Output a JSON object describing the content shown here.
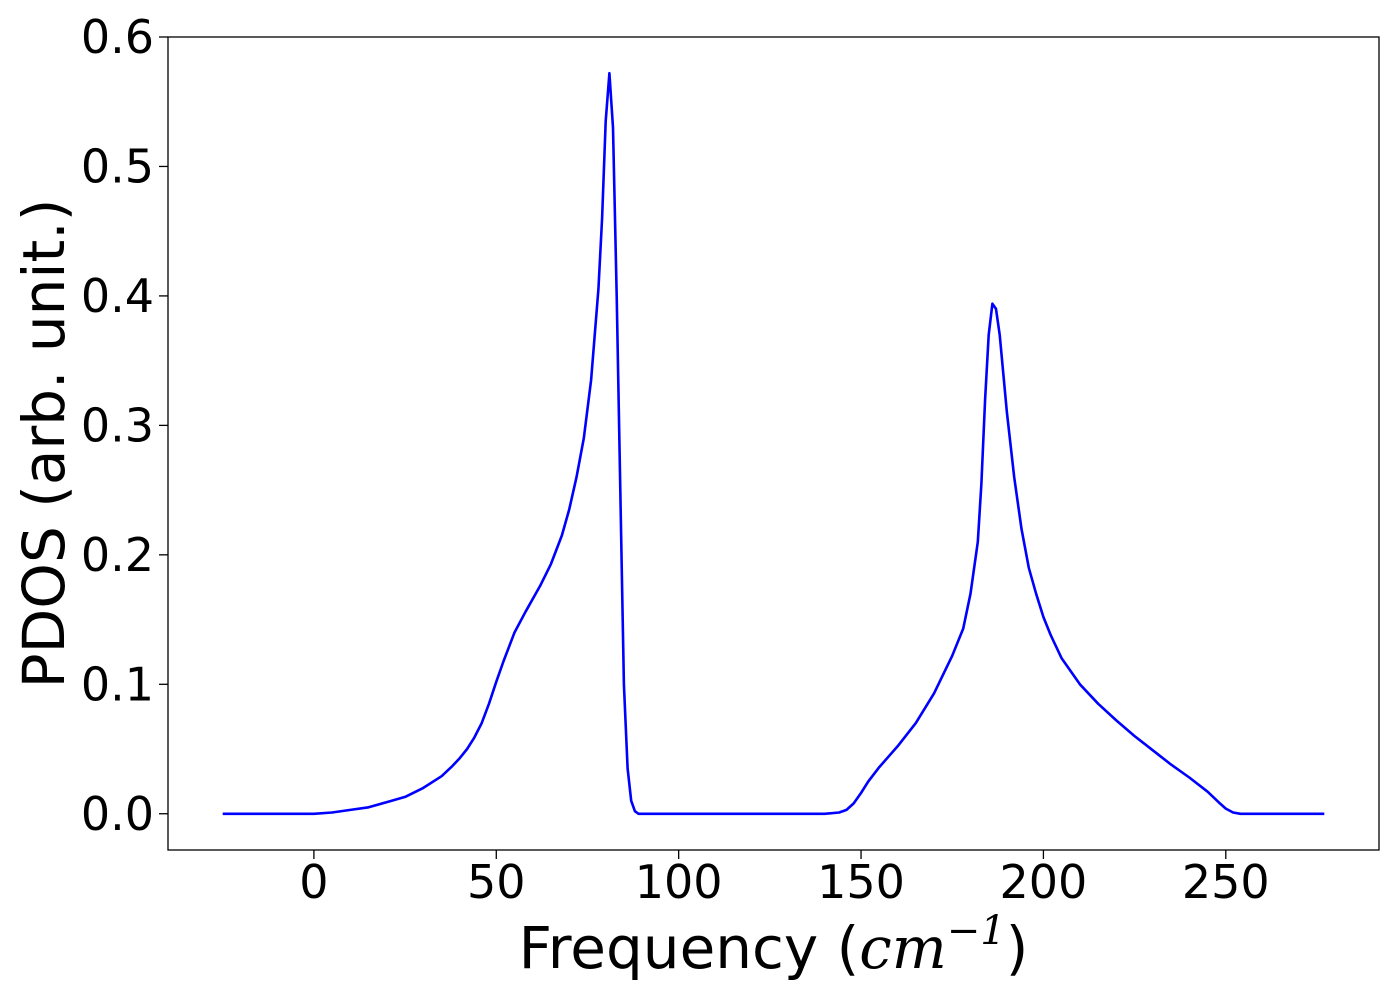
{
  "chart_data": {
    "type": "line",
    "title": "",
    "xlabel_prefix": "Frequency (",
    "xlabel_unit": "cm",
    "xlabel_sup": "−1",
    "xlabel_suffix": ")",
    "ylabel": "PDOS (arb. unit.)",
    "xlim": [
      -40,
      292
    ],
    "ylim": [
      -0.028,
      0.6
    ],
    "xticks": [
      0,
      50,
      100,
      150,
      200,
      250
    ],
    "xtick_labels": [
      "0",
      "50",
      "100",
      "150",
      "200",
      "250"
    ],
    "yticks": [
      0.0,
      0.1,
      0.2,
      0.3,
      0.4,
      0.5,
      0.6
    ],
    "ytick_labels": [
      "0.0",
      "0.1",
      "0.2",
      "0.3",
      "0.4",
      "0.5",
      "0.6"
    ],
    "grid": false,
    "legend": "none",
    "series": [
      {
        "color": "#0000ff",
        "x": [
          -25,
          -10,
          0,
          5,
          10,
          15,
          20,
          25,
          30,
          35,
          38,
          40,
          42,
          44,
          46,
          48,
          50,
          52,
          55,
          58,
          62,
          65,
          68,
          70,
          72,
          74,
          76,
          78,
          79,
          80,
          81,
          82,
          83,
          84,
          85,
          86,
          87,
          88,
          89,
          90,
          91,
          92,
          95,
          100,
          120,
          140,
          144,
          146,
          148,
          150,
          152,
          155,
          160,
          165,
          170,
          175,
          178,
          180,
          182,
          183,
          184,
          185,
          186,
          187,
          188,
          189,
          190,
          192,
          194,
          196,
          198,
          200,
          202,
          205,
          210,
          215,
          220,
          225,
          230,
          235,
          240,
          245,
          248,
          250,
          252,
          254,
          256,
          258,
          260,
          270,
          277
        ],
        "y": [
          0.0,
          0.0,
          0.0,
          0.001,
          0.003,
          0.005,
          0.009,
          0.013,
          0.02,
          0.029,
          0.037,
          0.043,
          0.05,
          0.059,
          0.07,
          0.085,
          0.102,
          0.118,
          0.14,
          0.156,
          0.176,
          0.193,
          0.215,
          0.235,
          0.26,
          0.29,
          0.335,
          0.405,
          0.46,
          0.535,
          0.572,
          0.53,
          0.4,
          0.25,
          0.1,
          0.035,
          0.01,
          0.002,
          0.0,
          0.0,
          0.0,
          0.0,
          0.0,
          0.0,
          0.0,
          0.0,
          0.001,
          0.003,
          0.008,
          0.016,
          0.025,
          0.036,
          0.052,
          0.07,
          0.093,
          0.122,
          0.143,
          0.17,
          0.21,
          0.255,
          0.32,
          0.37,
          0.394,
          0.39,
          0.37,
          0.34,
          0.31,
          0.26,
          0.22,
          0.19,
          0.17,
          0.152,
          0.138,
          0.12,
          0.1,
          0.085,
          0.072,
          0.06,
          0.049,
          0.038,
          0.028,
          0.017,
          0.009,
          0.004,
          0.001,
          0.0,
          0.0,
          0.0,
          0.0,
          0.0,
          0.0
        ]
      }
    ]
  }
}
